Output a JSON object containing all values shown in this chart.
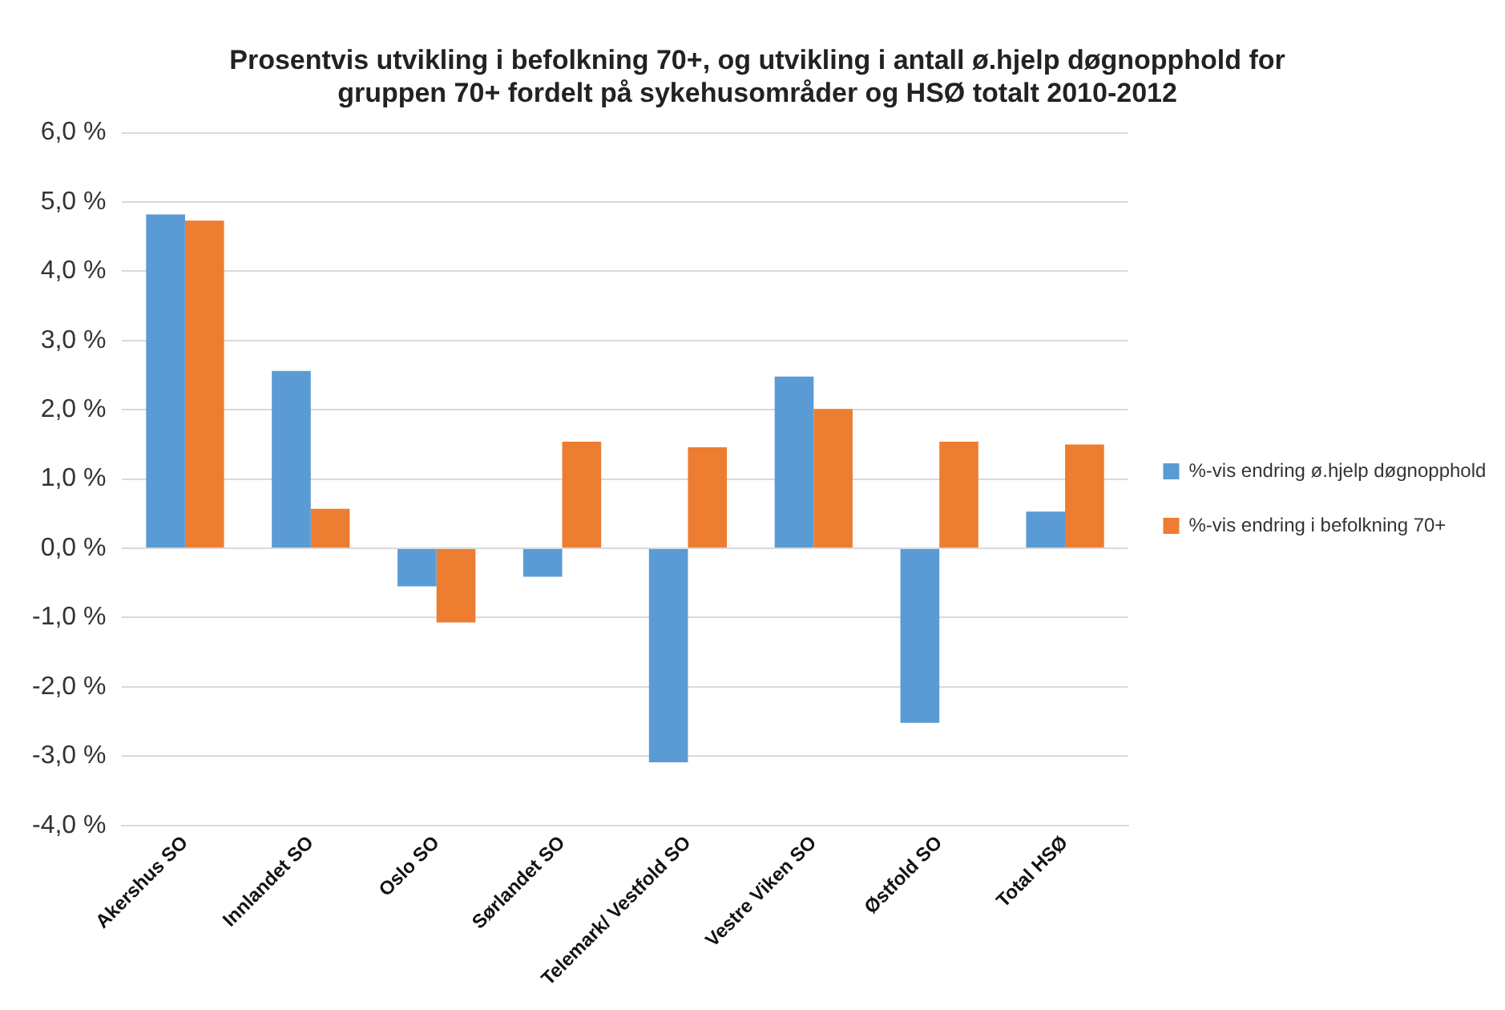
{
  "chart_data": {
    "type": "bar",
    "title": "Prosentvis utvikling i befolkning 70+, og utvikling i antall ø.hjelp døgnopphold for gruppen 70+ fordelt på sykehusområder og HSØ totalt 2010-2012",
    "categories": [
      "Akershus SO",
      "Innlandet SO",
      "Oslo SO",
      "Sørlandet SO",
      "Telemark/ Vestfold SO",
      "Vestre Viken SO",
      "Østfold SO",
      "Total HSØ"
    ],
    "series": [
      {
        "name": "%-vis endring ø.hjelp døgnopphold",
        "color": "#5b9bd5",
        "values": [
          4.82,
          2.56,
          -0.55,
          -0.41,
          -3.09,
          2.48,
          -2.52,
          0.53
        ]
      },
      {
        "name": "%-vis endring i befolkning 70+",
        "color": "#ed7d31",
        "values": [
          4.73,
          0.57,
          -1.07,
          1.54,
          1.46,
          2.01,
          1.54,
          1.5
        ]
      }
    ],
    "ylim": [
      -4,
      6
    ],
    "yticks": [
      {
        "value": -4,
        "label": "-4,0 %"
      },
      {
        "value": -3,
        "label": "-3,0 %"
      },
      {
        "value": -2,
        "label": "-2,0 %"
      },
      {
        "value": -1,
        "label": "-1,0 %"
      },
      {
        "value": 0,
        "label": "0,0 %"
      },
      {
        "value": 1,
        "label": "1,0 %"
      },
      {
        "value": 2,
        "label": "2,0 %"
      },
      {
        "value": 3,
        "label": "3,0 %"
      },
      {
        "value": 4,
        "label": "4,0 %"
      },
      {
        "value": 5,
        "label": "5,0 %"
      },
      {
        "value": 6,
        "label": "6,0 %"
      }
    ],
    "grid": "y",
    "legend": "right"
  }
}
